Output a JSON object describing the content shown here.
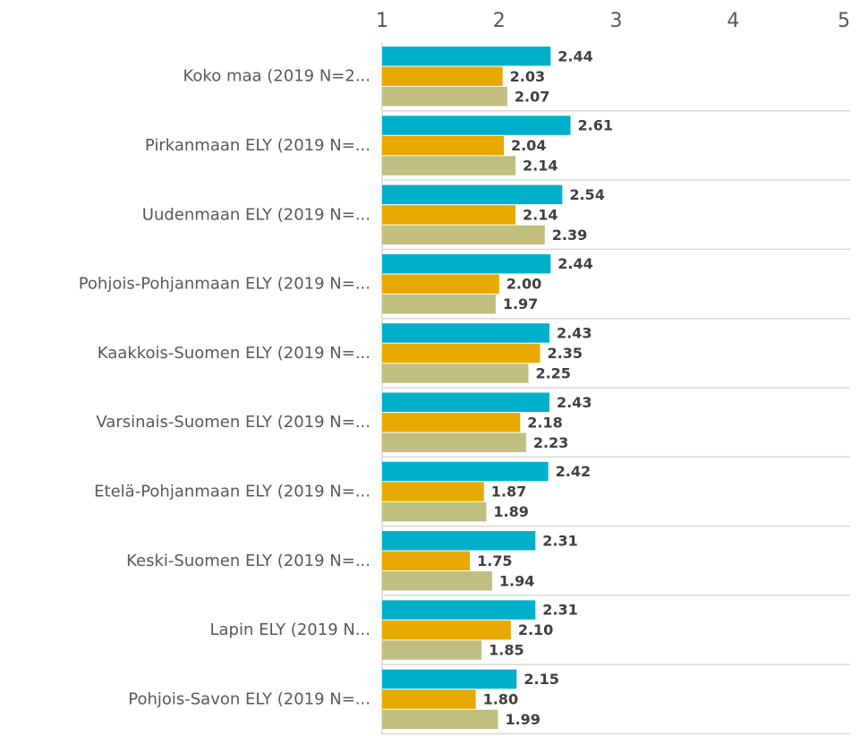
{
  "chart_data": {
    "type": "hbar",
    "categories": [
      "Koko maa (2019 N=2...",
      "Pirkanmaan ELY (2019 N=...",
      "Uudenmaan ELY (2019 N=...",
      "Pohjois-Pohjanmaan ELY (2019 N=...",
      "Kaakkois-Suomen ELY (2019 N=...",
      "Varsinais-Suomen ELY (2019 N=...",
      "Etelä-Pohjanmaan ELY (2019 N=...",
      "Keski-Suomen ELY (2019 N=...",
      "Lapin ELY (2019 N...",
      "Pohjois-Savon ELY (2019 N=..."
    ],
    "series": [
      {
        "color": "#00b0ca",
        "values": [
          2.44,
          2.61,
          2.54,
          2.44,
          2.43,
          2.43,
          2.42,
          2.31,
          2.31,
          2.15
        ],
        "value_labels": [
          "2.44",
          "2.61",
          "2.54",
          "2.44",
          "2.43",
          "2.43",
          "2.42",
          "2.31",
          "2.31",
          "2.15"
        ]
      },
      {
        "color": "#e8a900",
        "values": [
          2.03,
          2.04,
          2.14,
          2.0,
          2.35,
          2.18,
          1.87,
          1.75,
          2.1,
          1.8
        ],
        "value_labels": [
          "2.03",
          "2.04",
          "2.14",
          "2.00",
          "2.35",
          "2.18",
          "1.87",
          "1.75",
          "2.10",
          "1.80"
        ]
      },
      {
        "color": "#c0bf80",
        "values": [
          2.07,
          2.14,
          2.39,
          1.97,
          2.25,
          2.23,
          1.89,
          1.94,
          1.85,
          1.99
        ],
        "value_labels": [
          "2.07",
          "2.14",
          "2.39",
          "1.97",
          "2.25",
          "2.23",
          "1.89",
          "1.94",
          "1.85",
          "1.99"
        ]
      }
    ],
    "xlim": [
      1,
      5
    ],
    "xticks": [
      1,
      2,
      3,
      4,
      5
    ],
    "grid": true
  }
}
